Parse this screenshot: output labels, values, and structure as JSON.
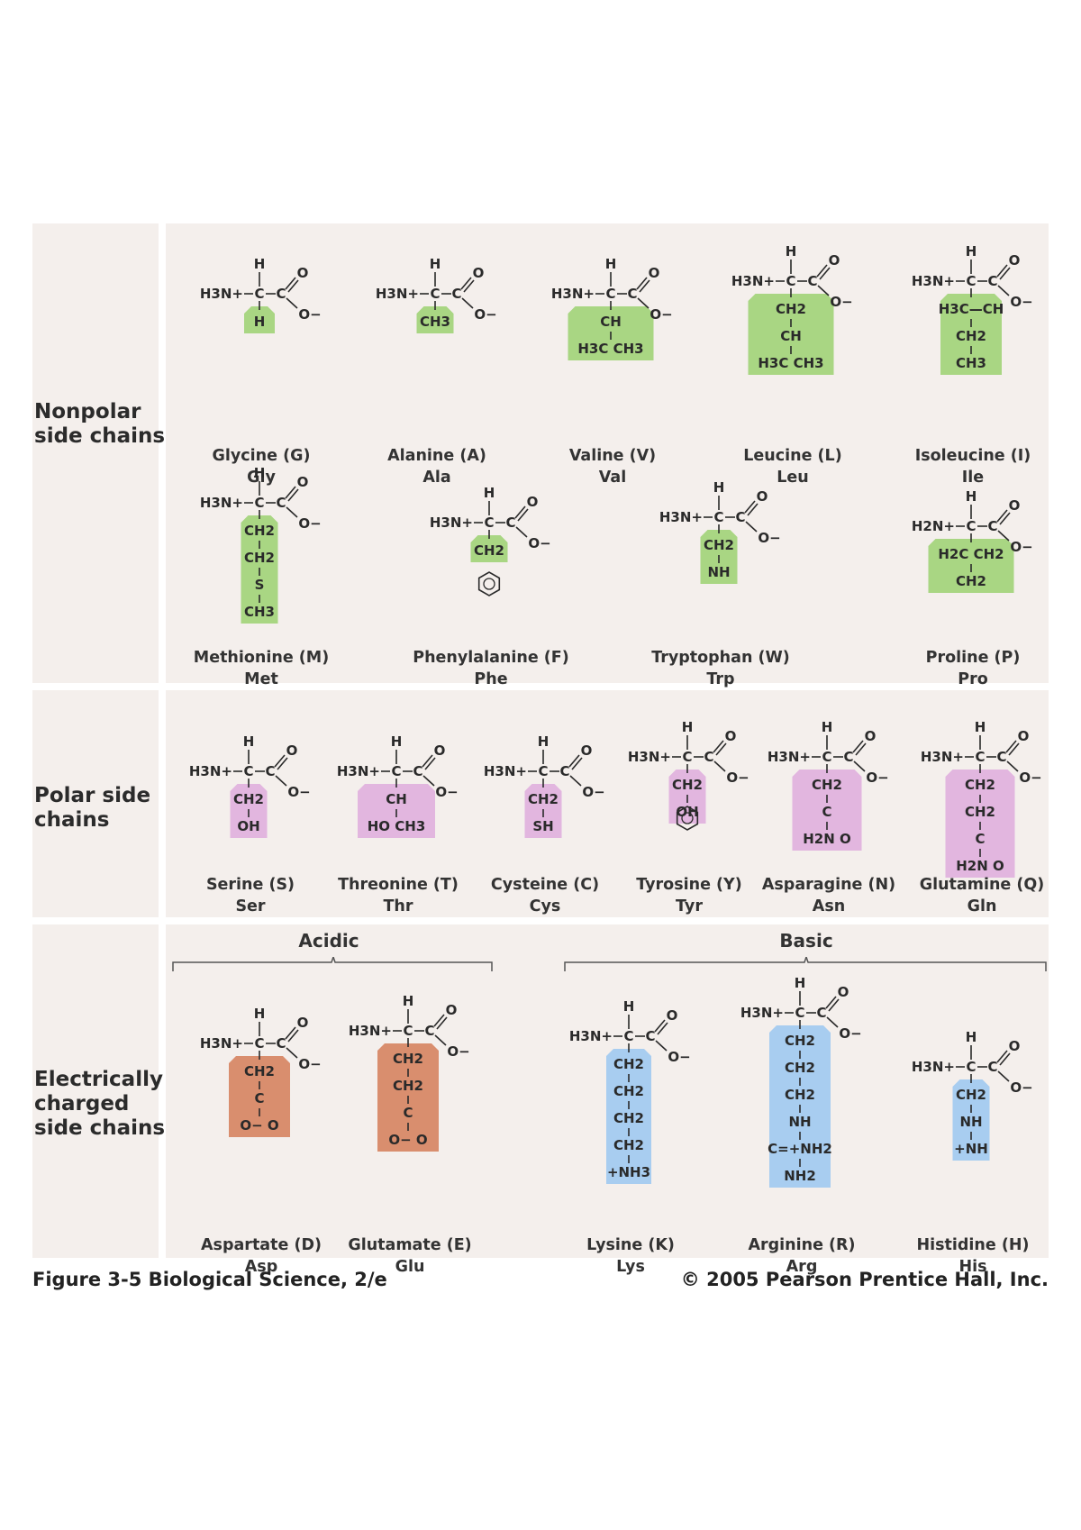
{
  "sections": {
    "nonpolar": "Nonpolar\nside chains",
    "polar": "Polar side\nchains",
    "charged": "Electrically\ncharged\nside chains"
  },
  "subgroups": {
    "acidic": "Acidic",
    "basic": "Basic"
  },
  "amino_acids": [
    {
      "name": "Glycine (G)",
      "abbr": "Gly",
      "chain": [
        "H"
      ],
      "color": "#a9d683"
    },
    {
      "name": "Alanine (A)",
      "abbr": "Ala",
      "chain": [
        "CH3"
      ],
      "color": "#a9d683"
    },
    {
      "name": "Valine (V)",
      "abbr": "Val",
      "chain": [
        "CH",
        "H3C   CH3"
      ],
      "color": "#a9d683"
    },
    {
      "name": "Leucine (L)",
      "abbr": "Leu",
      "chain": [
        "CH2",
        "CH",
        "H3C   CH3"
      ],
      "color": "#a9d683"
    },
    {
      "name": "Isoleucine (I)",
      "abbr": "Ile",
      "chain": [
        "H3C—CH",
        "CH2",
        "CH3"
      ],
      "color": "#a9d683"
    },
    {
      "name": "Methionine (M)",
      "abbr": "Met",
      "chain": [
        "CH2",
        "CH2",
        "S",
        "CH3"
      ],
      "color": "#a9d683"
    },
    {
      "name": "Phenylalanine (F)",
      "abbr": "Phe",
      "chain": [
        "CH2"
      ],
      "color": "#a9d683"
    },
    {
      "name": "Tryptophan (W)",
      "abbr": "Trp",
      "chain": [
        "CH2",
        "NH"
      ],
      "color": "#a9d683"
    },
    {
      "name": "Proline (P)",
      "abbr": "Pro",
      "chain": [
        "H2C   CH2",
        "CH2"
      ],
      "color": "#a9d683"
    },
    {
      "name": "Serine (S)",
      "abbr": "Ser",
      "chain": [
        "CH2",
        "OH"
      ],
      "color": "#e2b6df"
    },
    {
      "name": "Threonine (T)",
      "abbr": "Thr",
      "chain": [
        "CH",
        "HO   CH3"
      ],
      "color": "#e2b6df"
    },
    {
      "name": "Cysteine (C)",
      "abbr": "Cys",
      "chain": [
        "CH2",
        "SH"
      ],
      "color": "#e2b6df"
    },
    {
      "name": "Tyrosine (Y)",
      "abbr": "Tyr",
      "chain": [
        "CH2",
        "OH"
      ],
      "color": "#e2b6df"
    },
    {
      "name": "Asparagine (N)",
      "abbr": "Asn",
      "chain": [
        "CH2",
        "C",
        "H2N   O"
      ],
      "color": "#e2b6df"
    },
    {
      "name": "Glutamine (Q)",
      "abbr": "Gln",
      "chain": [
        "CH2",
        "CH2",
        "C",
        "H2N   O"
      ],
      "color": "#e2b6df"
    },
    {
      "name": "Aspartate (D)",
      "abbr": "Asp",
      "chain": [
        "CH2",
        "C",
        "O−   O"
      ],
      "color": "#d98e6e"
    },
    {
      "name": "Glutamate (E)",
      "abbr": "Glu",
      "chain": [
        "CH2",
        "CH2",
        "C",
        "O−   O"
      ],
      "color": "#d98e6e"
    },
    {
      "name": "Lysine (K)",
      "abbr": "Lys",
      "chain": [
        "CH2",
        "CH2",
        "CH2",
        "CH2",
        "+NH3"
      ],
      "color": "#a8cdf0"
    },
    {
      "name": "Arginine (R)",
      "abbr": "Arg",
      "chain": [
        "CH2",
        "CH2",
        "CH2",
        "NH",
        "C=+NH2",
        "NH2"
      ],
      "color": "#a8cdf0"
    },
    {
      "name": "Histidine (H)",
      "abbr": "His",
      "chain": [
        "CH2",
        "NH",
        "+NH"
      ],
      "color": "#a8cdf0"
    }
  ],
  "backbone": {
    "amino": "H3N+",
    "amino_proline": "H2N+",
    "alpha_c": "C",
    "h": "H",
    "o": "O",
    "o_minus": "O−"
  },
  "caption": {
    "figure": "Figure 3-5   Biological Science, 2/e",
    "copyright": "© 2005 Pearson Prentice Hall, Inc."
  }
}
